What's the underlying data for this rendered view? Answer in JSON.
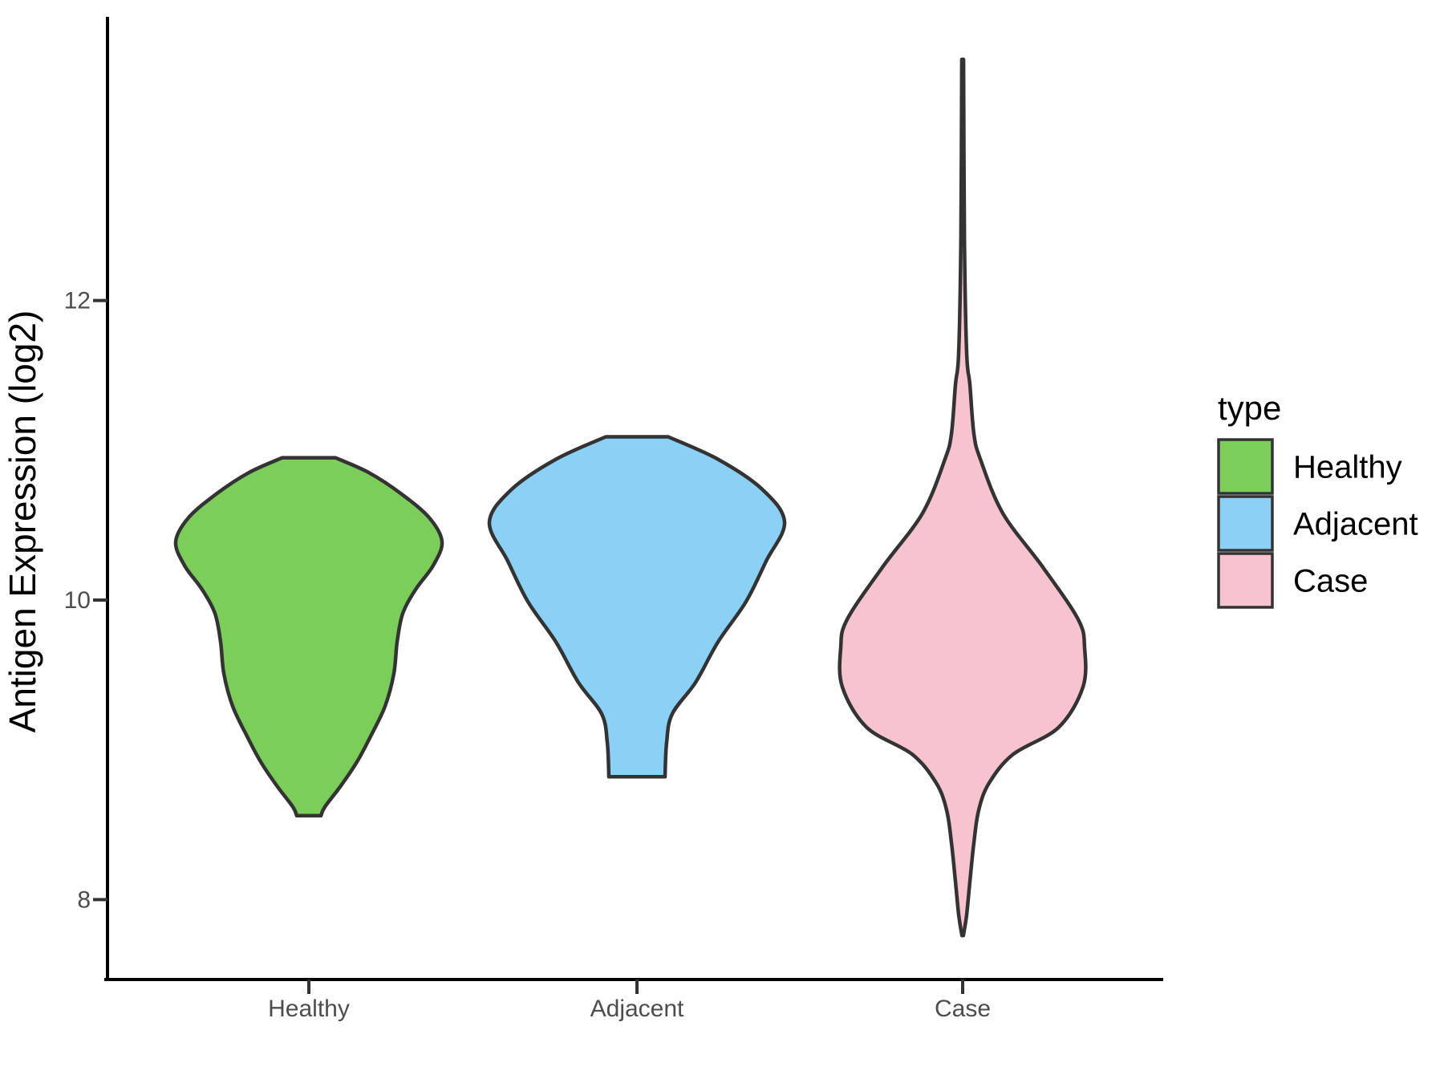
{
  "chart_data": {
    "type": "violin",
    "title": "",
    "xlabel": "",
    "ylabel": "Antigen Expression (log2)",
    "categories": [
      "Healthy",
      "Adjacent",
      "Case"
    ],
    "y_ticks": [
      8,
      10,
      12
    ],
    "ylim": [
      7.47,
      13.93
    ],
    "grid": false,
    "legend": {
      "title": "type",
      "position": "right",
      "entries": [
        {
          "label": "Healthy",
          "color": "#7CCE5B"
        },
        {
          "label": "Adjacent",
          "color": "#8AD1F5"
        },
        {
          "label": "Case",
          "color": "#F7C3CE"
        }
      ]
    },
    "colors": {
      "outline": "#333333",
      "axis": "#000000",
      "tick_text": "#4D4D4D",
      "title_text": "#000000",
      "background": "#FFFFFF"
    },
    "series": [
      {
        "name": "Healthy",
        "fill": "#7CCE5B",
        "min": 8.56,
        "max": 10.95,
        "peak_value": 10.39,
        "profile": [
          [
            10.95,
            0.18
          ],
          [
            10.85,
            0.408
          ],
          [
            10.71,
            0.625
          ],
          [
            10.55,
            0.815
          ],
          [
            10.39,
            0.902
          ],
          [
            10.23,
            0.842
          ],
          [
            10.07,
            0.723
          ],
          [
            9.91,
            0.636
          ],
          [
            9.72,
            0.598
          ],
          [
            9.51,
            0.576
          ],
          [
            9.29,
            0.516
          ],
          [
            9.08,
            0.413
          ],
          [
            8.92,
            0.326
          ],
          [
            8.76,
            0.217
          ],
          [
            8.62,
            0.109
          ],
          [
            8.56,
            0.082
          ]
        ]
      },
      {
        "name": "Adjacent",
        "fill": "#8AD1F5",
        "min": 8.82,
        "max": 11.09,
        "peak_value": 10.52,
        "profile": [
          [
            11.09,
            0.212
          ],
          [
            10.94,
            0.549
          ],
          [
            10.74,
            0.848
          ],
          [
            10.52,
            1.0
          ],
          [
            10.26,
            0.875
          ],
          [
            9.99,
            0.739
          ],
          [
            9.72,
            0.549
          ],
          [
            9.45,
            0.397
          ],
          [
            9.24,
            0.239
          ],
          [
            9.05,
            0.201
          ],
          [
            8.82,
            0.19
          ]
        ]
      },
      {
        "name": "Case",
        "fill": "#F7C3CE",
        "min": 7.76,
        "max": 13.61,
        "peak_value": 9.68,
        "profile": [
          [
            13.61,
            0.006
          ],
          [
            12.4,
            0.012
          ],
          [
            11.65,
            0.027
          ],
          [
            11.44,
            0.049
          ],
          [
            11.11,
            0.076
          ],
          [
            10.94,
            0.12
          ],
          [
            10.58,
            0.272
          ],
          [
            10.22,
            0.543
          ],
          [
            9.87,
            0.783
          ],
          [
            9.68,
            0.826
          ],
          [
            9.42,
            0.815
          ],
          [
            9.15,
            0.65
          ],
          [
            8.97,
            0.342
          ],
          [
            8.78,
            0.18
          ],
          [
            8.6,
            0.109
          ],
          [
            8.38,
            0.076
          ],
          [
            8.12,
            0.049
          ],
          [
            7.9,
            0.027
          ],
          [
            7.76,
            0.005
          ]
        ]
      }
    ]
  }
}
